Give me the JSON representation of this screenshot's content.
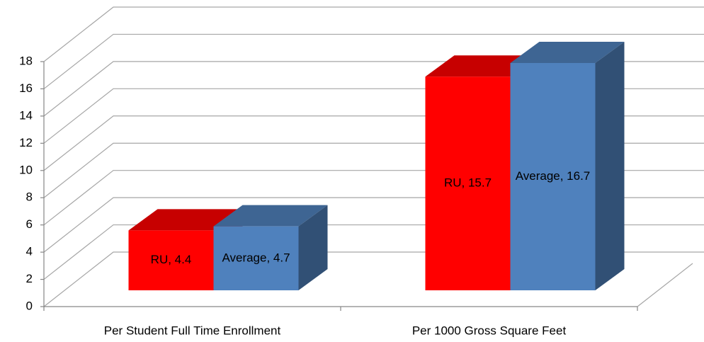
{
  "chart_data": {
    "type": "bar3d",
    "categories": [
      "Per Student Full Time Enrollment",
      "Per 1000 Gross Square Feet"
    ],
    "series": [
      {
        "name": "RU",
        "color": "#ff0000",
        "values": [
          4.4,
          15.7
        ],
        "value_labels": [
          "RU, 4.4",
          "RU, 15.7"
        ]
      },
      {
        "name": "Average",
        "color": "#4f81bd",
        "values": [
          4.7,
          16.7
        ],
        "value_labels": [
          "Average, 4.7",
          "Average, 16.7"
        ]
      }
    ],
    "ylim": [
      0,
      18
    ],
    "yticks": [
      0,
      2,
      4,
      6,
      8,
      10,
      12,
      14,
      16,
      18
    ],
    "grid": true
  }
}
